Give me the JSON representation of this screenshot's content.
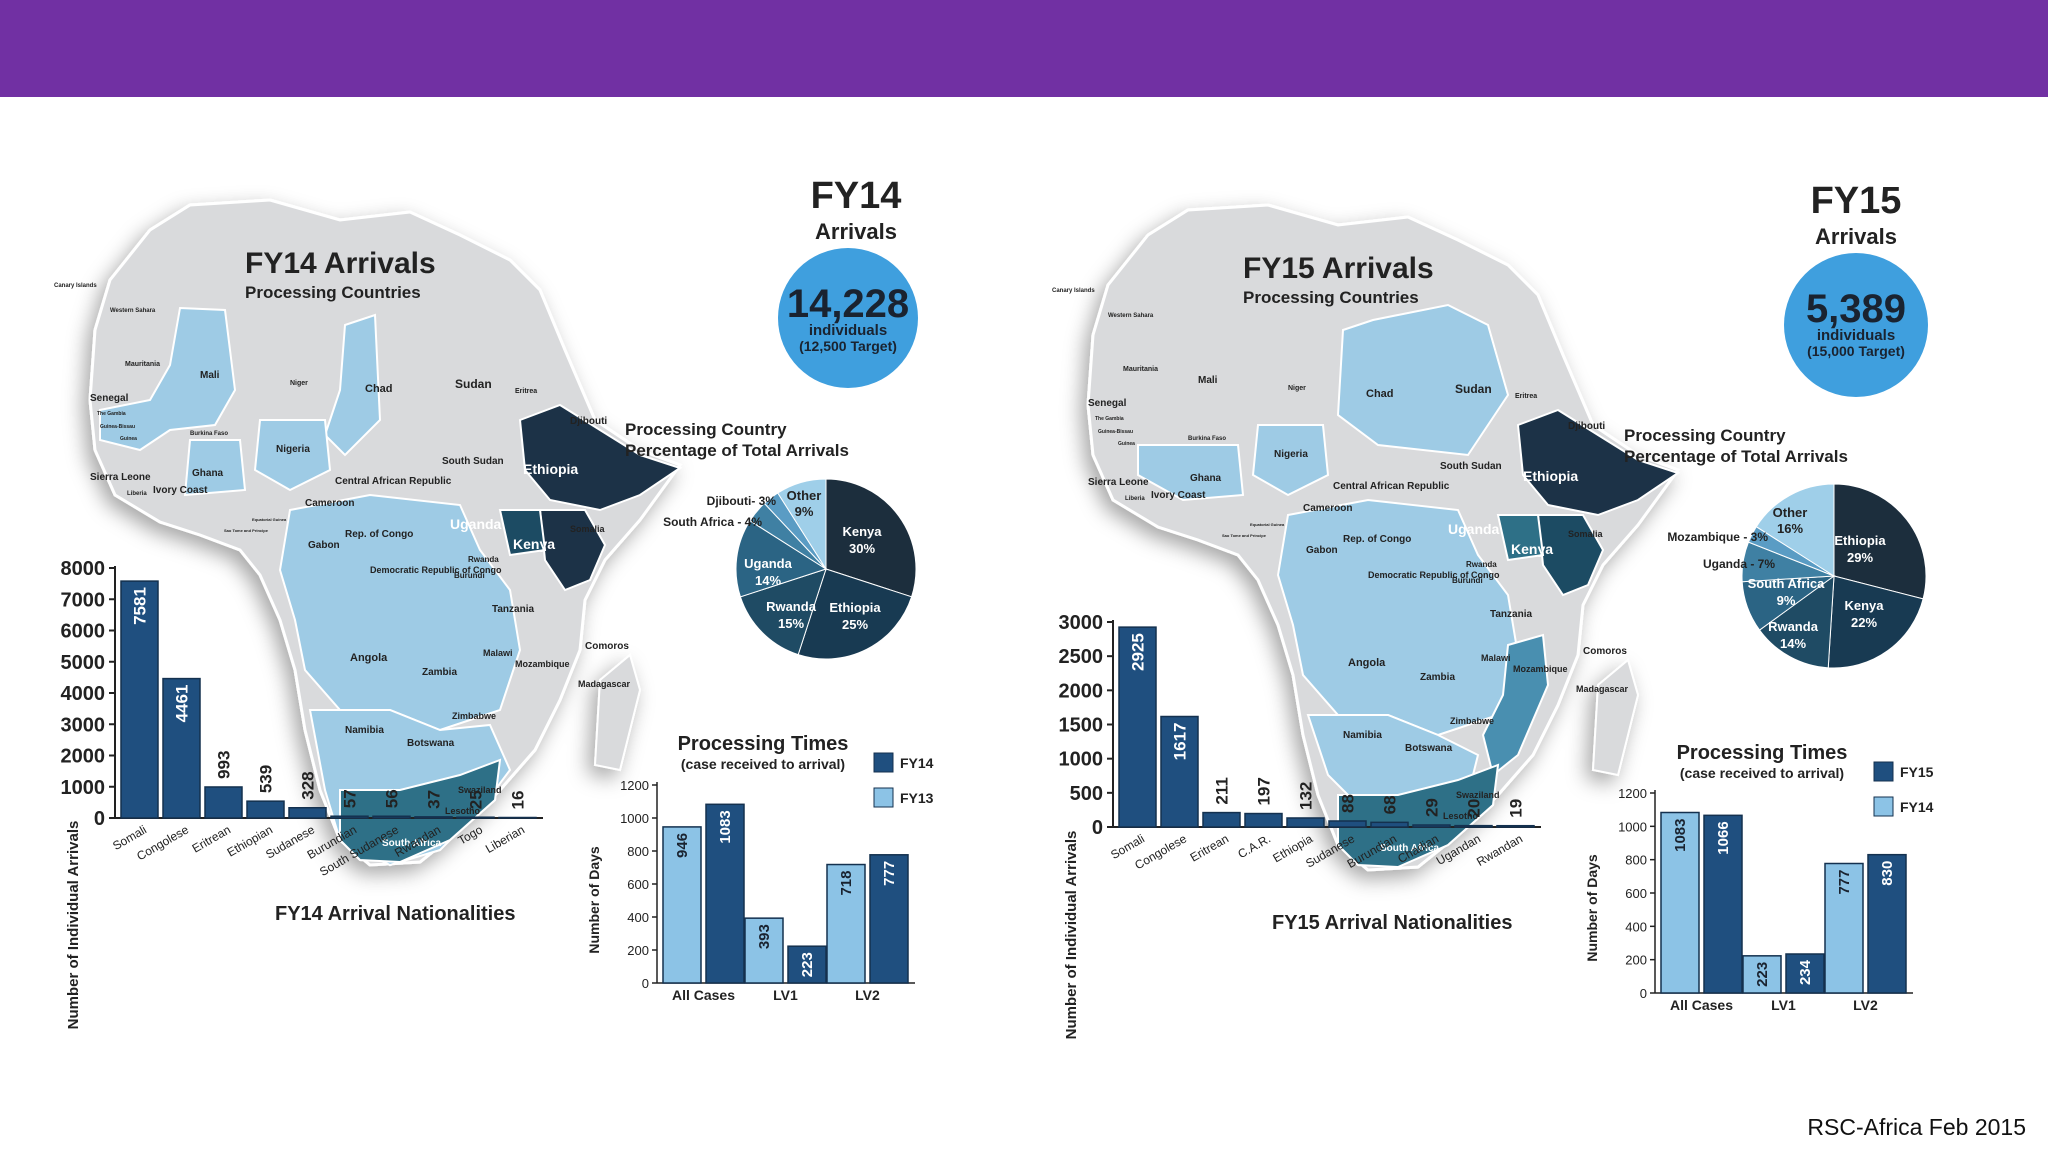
{
  "colors": {
    "topbar": "#7130a3",
    "circle": "#3f9fde",
    "land": "#d9dadc",
    "processing": "#9ecbe5",
    "dark": "#1b3347",
    "mid": "#1f4b64",
    "bar_dark": "#1f4f7f",
    "bar_light": "#8cc3e6"
  },
  "footer": "RSC-Africa Feb 2015",
  "panels": [
    {
      "fy": "FY14",
      "arrivals_word": "Arrivals",
      "total": "14,228",
      "individuals": "individuals",
      "target": "(12,500 Target)",
      "map_title": "FY14 Arrivals",
      "map_subtitle": "Processing Countries",
      "pie_title_1": "Processing Country",
      "pie_title_2": "Percentage of Total Arrivals",
      "map_labels": {
        "canary": "Canary Islands",
        "western_sahara": "Western Sahara",
        "mauritania": "Mauritania",
        "mali": "Mali",
        "niger": "Niger",
        "chad": "Chad",
        "sudan": "Sudan",
        "eritrea": "Eritrea",
        "djibouti": "Djibouti",
        "senegal": "Senegal",
        "gambia": "The Gambia",
        "guinea_bissau": "Guinea-Bissau",
        "guinea": "Guinea",
        "burkina": "Burkina Faso",
        "sierra_leone": "Sierra Leone",
        "liberia": "Liberia",
        "ivory": "Ivory Coast",
        "ghana": "Ghana",
        "nigeria": "Nigeria",
        "south_sudan": "South Sudan",
        "ethiopia": "Ethiopia",
        "car": "Central African Republic",
        "cameroon": "Cameroon",
        "eq_guinea": "Equatorial Guinea",
        "sao_tome": "Sao Tome and Principe",
        "gabon": "Gabon",
        "congo": "Rep. of Congo",
        "uganda": "Uganda",
        "kenya": "Kenya",
        "somalia": "Somalia",
        "drc": "Democratic Republic of Congo",
        "rwanda": "Rwanda",
        "burundi": "Burundi",
        "tanzania": "Tanzania",
        "comoros": "Comoros",
        "angola": "Angola",
        "malawi": "Malawi",
        "zambia": "Zambia",
        "mozambique": "Mozambique",
        "madagascar": "Madagascar",
        "zimbabwe": "Zimbabwe",
        "namibia": "Namibia",
        "botswana": "Botswana",
        "swaziland": "Swaziland",
        "lesotho": "Lesotho",
        "south_africa": "South Africa"
      },
      "pie_labels": {
        "inside": [
          "Kenya",
          "30%",
          "Ethiopia",
          "25%",
          "Rwanda",
          "15%",
          "Uganda",
          "14%",
          "Other",
          "9%"
        ],
        "outside": [
          "Djibouti- 3%",
          "South Africa - 4%"
        ]
      }
    },
    {
      "fy": "FY15",
      "arrivals_word": "Arrivals",
      "total": "5,389",
      "individuals": "individuals",
      "target": "(15,000 Target)",
      "map_title": "FY15 Arrivals",
      "map_subtitle": "Processing Countries",
      "pie_title_1": "Processing Country",
      "pie_title_2": "Percentage of Total Arrivals",
      "map_labels": {
        "canary": "Canary Islands",
        "western_sahara": "Western Sahara",
        "mauritania": "Mauritania",
        "mali": "Mali",
        "niger": "Niger",
        "chad": "Chad",
        "sudan": "Sudan",
        "eritrea": "Eritrea",
        "djibouti": "Djibouti",
        "senegal": "Senegal",
        "gambia": "The Gambia",
        "guinea_bissau": "Guinea-Bissau",
        "guinea": "Guinea",
        "burkina": "Burkina Faso",
        "sierra_leone": "Sierra Leone",
        "liberia": "Liberia",
        "ivory": "Ivory Coast",
        "ghana": "Ghana",
        "nigeria": "Nigeria",
        "south_sudan": "South Sudan",
        "ethiopia": "Ethiopia",
        "car": "Central African Republic",
        "cameroon": "Cameroon",
        "eq_guinea": "Equatorial Guinea",
        "sao_tome": "Sao Tome and Principe",
        "gabon": "Gabon",
        "congo": "Rep. of Congo",
        "uganda": "Uganda",
        "kenya": "Kenya",
        "somalia": "Somalia",
        "drc": "Democratic Republic of Congo",
        "rwanda": "Rwanda",
        "burundi": "Burundi",
        "tanzania": "Tanzania",
        "comoros": "Comoros",
        "angola": "Angola",
        "malawi": "Malawi",
        "zambia": "Zambia",
        "mozambique": "Mozambique",
        "madagascar": "Madagascar",
        "zimbabwe": "Zimbabwe",
        "namibia": "Namibia",
        "botswana": "Botswana",
        "swaziland": "Swaziland",
        "lesotho": "Lesotho",
        "south_africa": "South Africa"
      },
      "pie_labels": {
        "inside": [
          "Ethiopia",
          "29%",
          "Kenya",
          "22%",
          "Rwanda",
          "14%",
          "South Africa",
          "9%",
          "Other",
          "16%"
        ],
        "outside": [
          "Mozambique - 3%",
          "Uganda - 7%"
        ]
      }
    }
  ],
  "chart_data": [
    {
      "type": "bar",
      "title": "FY14 Arrival Nationalities",
      "xlabel": "",
      "ylabel": "Number of Individual Arrivals",
      "ylim": [
        0,
        8000
      ],
      "yticks": [
        0,
        1000,
        2000,
        3000,
        4000,
        5000,
        6000,
        7000,
        8000
      ],
      "categories": [
        "Somali",
        "Congolese",
        "Eritrean",
        "Ethiopian",
        "Sudanese",
        "Burundian",
        "South Sudanese",
        "Rwandan",
        "Togo",
        "Liberian"
      ],
      "values": [
        7581,
        4461,
        993,
        539,
        328,
        57,
        56,
        37,
        25,
        16
      ]
    },
    {
      "type": "bar",
      "title": "Processing Times",
      "subtitle": "(case received to arrival)",
      "xlabel": "",
      "ylabel": "Number of Days",
      "ylim": [
        0,
        1200
      ],
      "yticks": [
        0,
        200,
        400,
        600,
        800,
        1000,
        1200
      ],
      "categories": [
        "All Cases",
        "LV1",
        "LV2"
      ],
      "series": [
        {
          "name": "FY13",
          "values": [
            946,
            393,
            718
          ]
        },
        {
          "name": "FY14",
          "values": [
            1083,
            223,
            777
          ]
        }
      ]
    },
    {
      "type": "pie",
      "title": "Processing Country Percentage of Total Arrivals",
      "slices": [
        {
          "label": "Kenya",
          "value": 30
        },
        {
          "label": "Ethiopia",
          "value": 25
        },
        {
          "label": "Rwanda",
          "value": 15
        },
        {
          "label": "Uganda",
          "value": 14
        },
        {
          "label": "South Africa",
          "value": 4
        },
        {
          "label": "Djibouti",
          "value": 3
        },
        {
          "label": "Other",
          "value": 9
        }
      ]
    },
    {
      "type": "bar",
      "title": "FY15 Arrival Nationalities",
      "xlabel": "",
      "ylabel": "Number of Individual Arrivals",
      "ylim": [
        0,
        3000
      ],
      "yticks": [
        0,
        500,
        1000,
        1500,
        2000,
        2500,
        3000
      ],
      "categories": [
        "Somali",
        "Congolese",
        "Eritrean",
        "C.A.R.",
        "Ethiopia",
        "Sudanese",
        "Burundian",
        "Chadian",
        "Ugandan",
        "Rwandan"
      ],
      "values": [
        2925,
        1617,
        211,
        197,
        132,
        88,
        68,
        29,
        20,
        19
      ]
    },
    {
      "type": "bar",
      "title": "Processing Times",
      "subtitle": "(case received to arrival)",
      "xlabel": "",
      "ylabel": "Number of Days",
      "ylim": [
        0,
        1200
      ],
      "yticks": [
        0,
        200,
        400,
        600,
        800,
        1000,
        1200
      ],
      "categories": [
        "All Cases",
        "LV1",
        "LV2"
      ],
      "series": [
        {
          "name": "FY14",
          "values": [
            1083,
            223,
            777
          ]
        },
        {
          "name": "FY15",
          "values": [
            1066,
            234,
            830
          ]
        }
      ]
    },
    {
      "type": "pie",
      "title": "Processing Country Percentage of Total Arrivals",
      "slices": [
        {
          "label": "Ethiopia",
          "value": 29
        },
        {
          "label": "Kenya",
          "value": 22
        },
        {
          "label": "Rwanda",
          "value": 14
        },
        {
          "label": "South Africa",
          "value": 9
        },
        {
          "label": "Uganda",
          "value": 7
        },
        {
          "label": "Mozambique",
          "value": 3
        },
        {
          "label": "Other",
          "value": 16
        }
      ]
    }
  ]
}
